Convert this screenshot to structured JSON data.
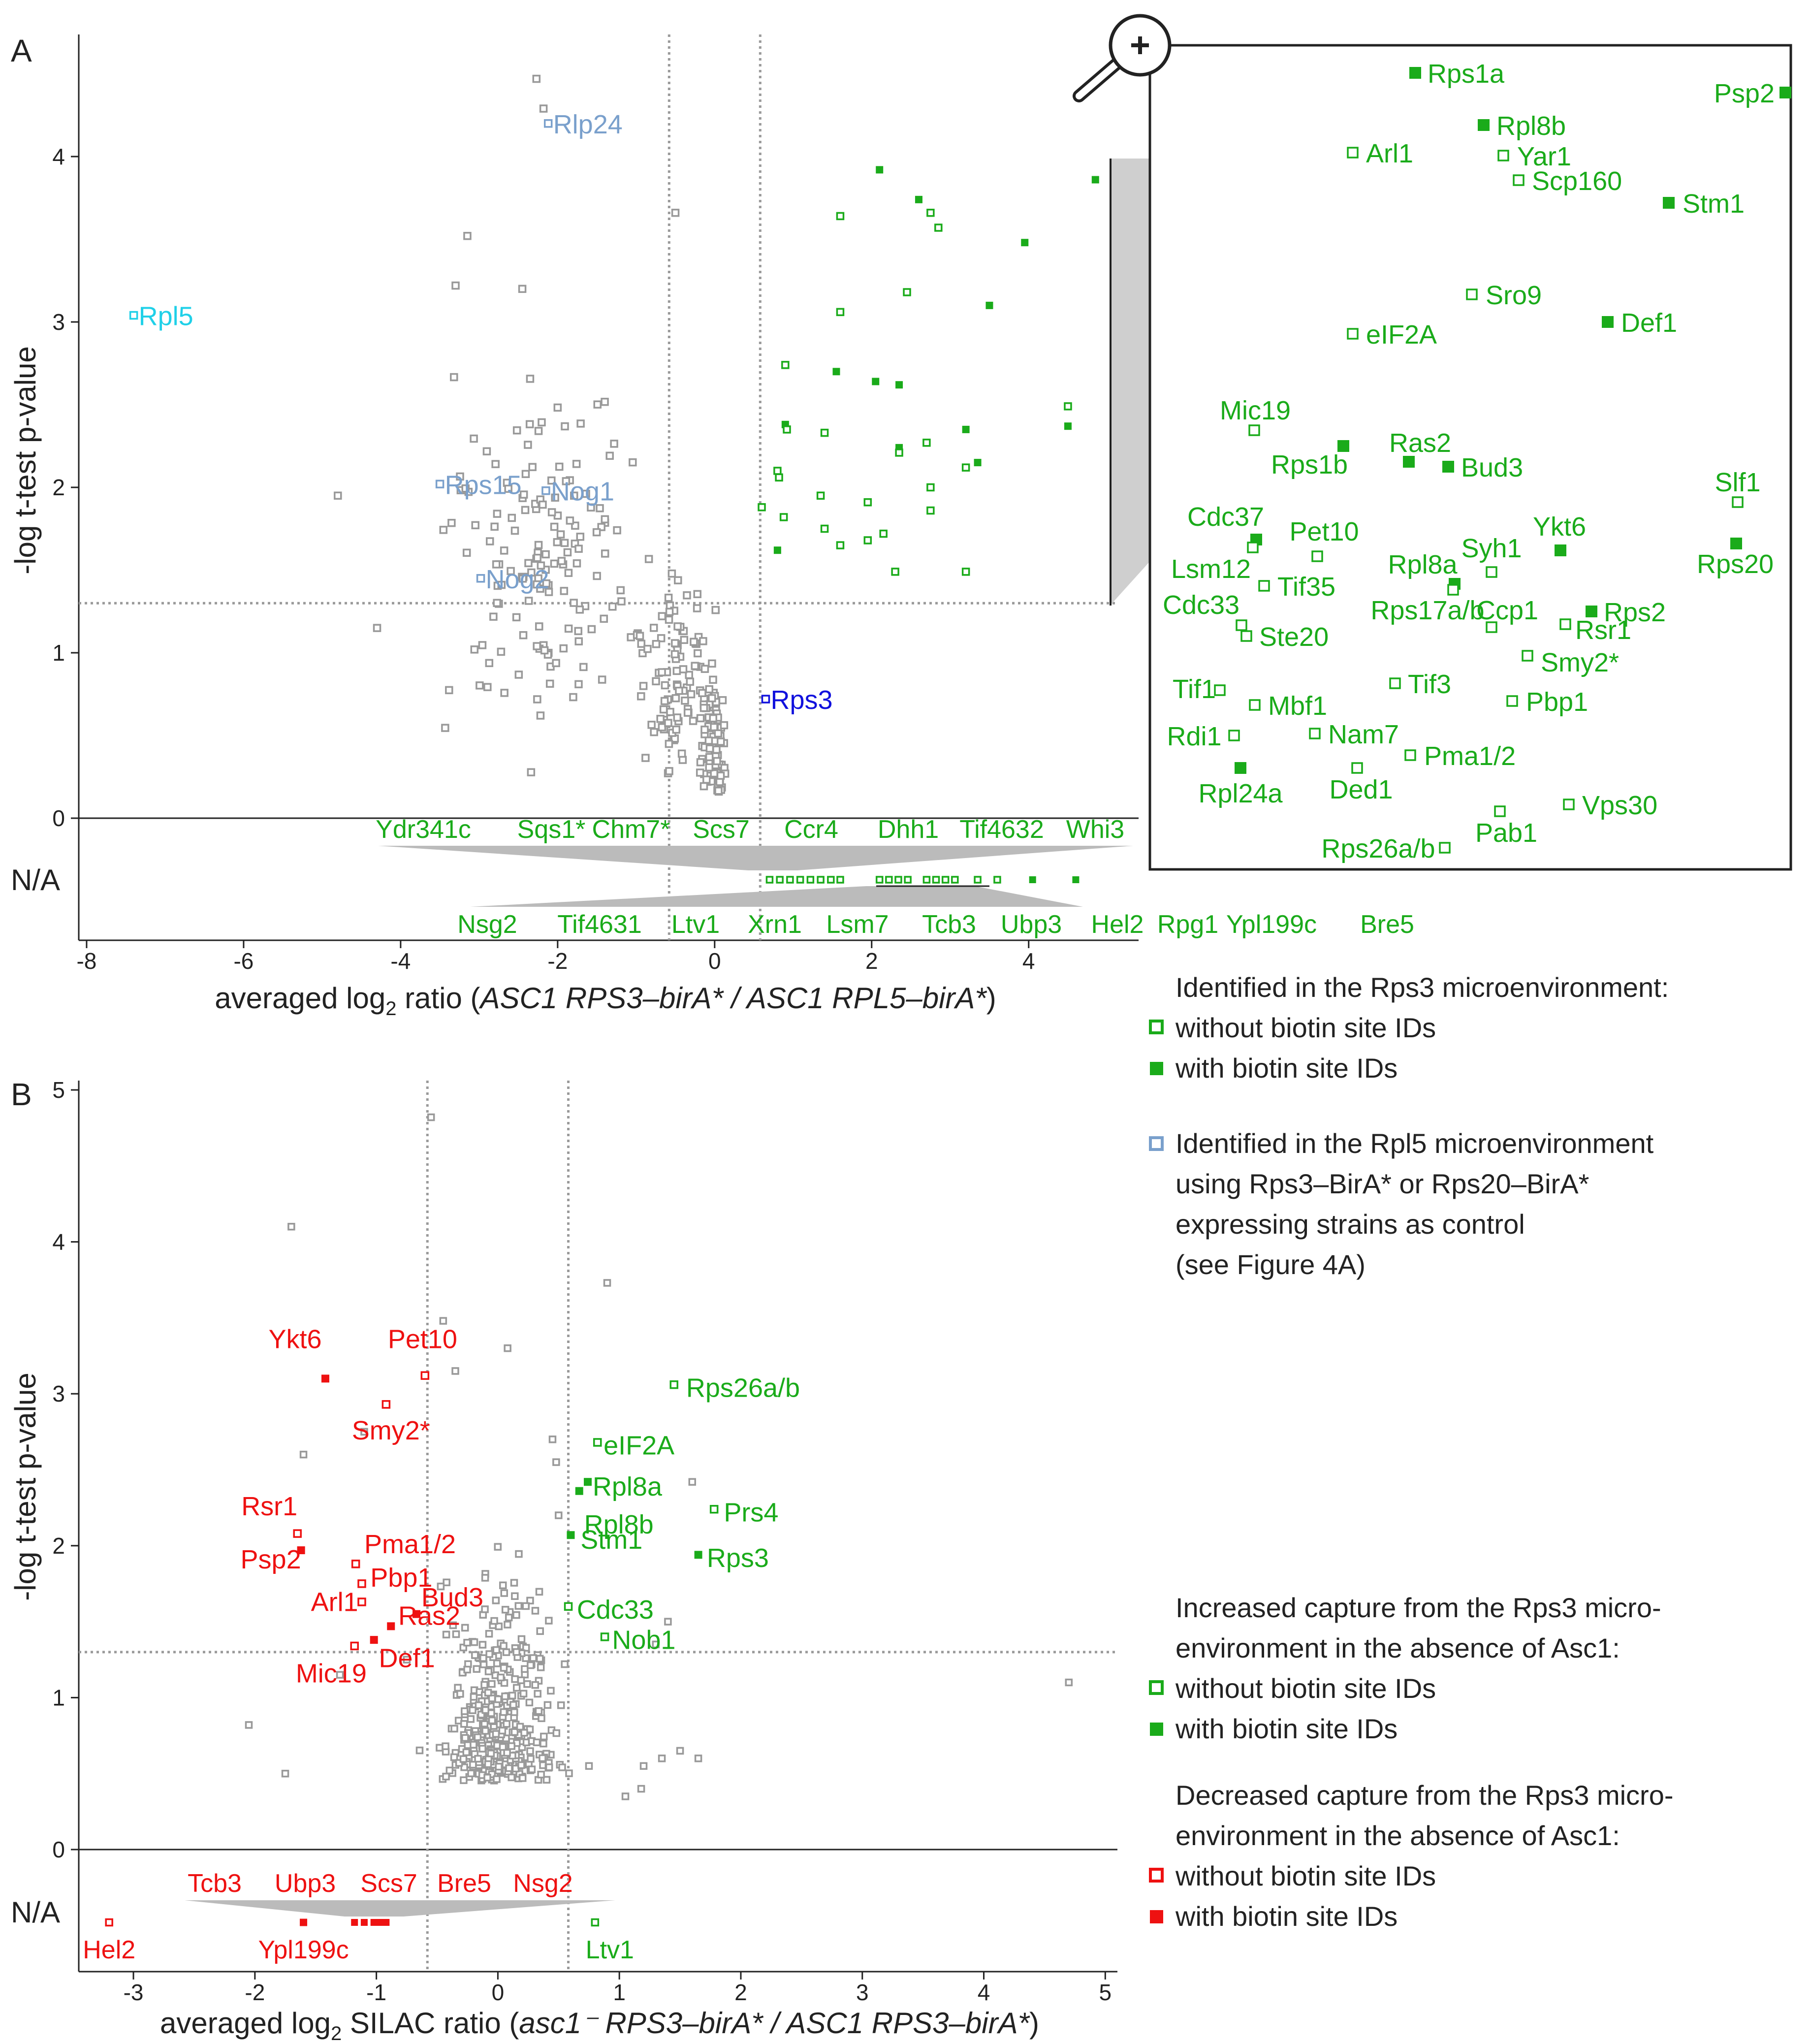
{
  "colors": {
    "green": "#1aab1a",
    "red": "#ee1111",
    "gray": "#999999",
    "steelblue": "#7aa0cc",
    "cyan": "#1fd0e8",
    "blue": "#1111dd",
    "axis": "#222222",
    "guide": "#9a9a9a",
    "wedge": "#bbbbbb"
  },
  "chart_data": [
    {
      "id": "A",
      "type": "scatter",
      "panel_letter": "A",
      "xlabel": "averaged log2 ratio (ASC1 RPS3–birA* / ASC1 RPL5–birA*)",
      "xlabel_parts": {
        "pre": "averaged log",
        "sub": "2",
        "mid": " ratio (",
        "italic": "ASC1 RPS3–birA* / ASC1 RPL5–birA*",
        "post": ")"
      },
      "ylabel": "-log t-test p-value",
      "xlim": [
        -8.1,
        5.4
      ],
      "ylim": [
        -0.75,
        4.75
      ],
      "xticks": [
        -8,
        -6,
        -4,
        -2,
        0,
        2,
        4
      ],
      "yticks": [
        0,
        1,
        2,
        3,
        4
      ],
      "na_label": "N/A",
      "thresholds": {
        "x": [
          -0.58,
          0.58
        ],
        "y": 1.3
      },
      "labeled_points": [
        {
          "label": "Rpl5",
          "x": -7.4,
          "y": 3.04,
          "color": "cyan"
        },
        {
          "label": "Rlp24",
          "x": -2.12,
          "y": 4.2,
          "color": "steelblue"
        },
        {
          "label": "Rps15",
          "x": -3.5,
          "y": 2.02,
          "color": "steelblue"
        },
        {
          "label": "Nog1",
          "x": -2.15,
          "y": 1.98,
          "color": "steelblue"
        },
        {
          "label": "Nog2",
          "x": -2.98,
          "y": 1.45,
          "color": "steelblue"
        },
        {
          "label": "Rps3",
          "x": 0.65,
          "y": 0.72,
          "color": "blue"
        }
      ],
      "green_points": [
        [
          2.1,
          3.92,
          1
        ],
        [
          2.6,
          3.74,
          1
        ],
        [
          2.75,
          3.66,
          0
        ],
        [
          2.85,
          3.57,
          0
        ],
        [
          1.6,
          3.64,
          0
        ],
        [
          3.95,
          3.48,
          1
        ],
        [
          4.85,
          3.86,
          1
        ],
        [
          2.45,
          3.18,
          0
        ],
        [
          3.5,
          3.1,
          1
        ],
        [
          1.6,
          3.06,
          0
        ],
        [
          0.9,
          2.74,
          0
        ],
        [
          1.55,
          2.7,
          1
        ],
        [
          2.05,
          2.64,
          1
        ],
        [
          2.35,
          2.62,
          1
        ],
        [
          4.5,
          2.49,
          0
        ],
        [
          4.5,
          2.37,
          1
        ],
        [
          0.9,
          2.38,
          1
        ],
        [
          0.92,
          2.35,
          0
        ],
        [
          1.4,
          2.33,
          0
        ],
        [
          3.2,
          2.35,
          1
        ],
        [
          2.35,
          2.24,
          1
        ],
        [
          2.35,
          2.21,
          0
        ],
        [
          2.7,
          2.27,
          0
        ],
        [
          0.8,
          2.1,
          0
        ],
        [
          0.82,
          2.06,
          0
        ],
        [
          1.35,
          1.95,
          0
        ],
        [
          2.75,
          2.0,
          0
        ],
        [
          3.35,
          2.15,
          1
        ],
        [
          3.2,
          2.12,
          0
        ],
        [
          0.6,
          1.88,
          0
        ],
        [
          1.95,
          1.91,
          0
        ],
        [
          2.75,
          1.86,
          0
        ],
        [
          0.88,
          1.82,
          0
        ],
        [
          1.4,
          1.75,
          0
        ],
        [
          1.6,
          1.65,
          0
        ],
        [
          2.15,
          1.72,
          0
        ],
        [
          0.8,
          1.62,
          1
        ],
        [
          1.95,
          1.68,
          0
        ],
        [
          2.3,
          1.49,
          0
        ],
        [
          3.2,
          1.49,
          0
        ]
      ],
      "na_row_top_labels": [
        "Ydr341c",
        "Sqs1*",
        "Chm7*",
        "Scs7",
        "Ccr4",
        "Dhh1",
        "Tif4632",
        "Whi3"
      ],
      "na_row_bottom_labels": [
        "Nsg2",
        "Tif4631",
        "Ltv1",
        "Xrn1",
        "Lsm7",
        "Tcb3",
        "Ubp3",
        "Hel2",
        "Rpg1",
        "Ypl199c",
        "Bre5"
      ],
      "na_points": [
        [
          0.7,
          0
        ],
        [
          0.83,
          0
        ],
        [
          0.96,
          0
        ],
        [
          1.09,
          0
        ],
        [
          1.22,
          0
        ],
        [
          1.35,
          0
        ],
        [
          1.48,
          0
        ],
        [
          1.6,
          0
        ],
        [
          2.1,
          0
        ],
        [
          2.22,
          0
        ],
        [
          2.34,
          0
        ],
        [
          2.46,
          0
        ],
        [
          2.7,
          0
        ],
        [
          2.82,
          0
        ],
        [
          2.94,
          0
        ],
        [
          3.06,
          0
        ],
        [
          3.35,
          0
        ],
        [
          3.6,
          0
        ],
        [
          4.05,
          1
        ],
        [
          4.6,
          1
        ]
      ],
      "zoom_points": [
        {
          "label": "Rps1a",
          "filled": true
        },
        {
          "label": "Psp2",
          "filled": true
        },
        {
          "label": "Rpl8b",
          "filled": true
        },
        {
          "label": "Arl1",
          "filled": false
        },
        {
          "label": "Yar1",
          "filled": false
        },
        {
          "label": "Scp160",
          "filled": false
        },
        {
          "label": "Stm1",
          "filled": true
        },
        {
          "label": "Sro9",
          "filled": false
        },
        {
          "label": "eIF2A",
          "filled": false
        },
        {
          "label": "Def1",
          "filled": true
        },
        {
          "label": "Mic19",
          "filled": false
        },
        {
          "label": "Ras2",
          "filled": true
        },
        {
          "label": "Rps1b",
          "filled": true
        },
        {
          "label": "Bud3",
          "filled": true
        },
        {
          "label": "Slf1",
          "filled": false
        },
        {
          "label": "Cdc37",
          "filled": true
        },
        {
          "label": "Pet10",
          "filled": false
        },
        {
          "label": "Ykt6",
          "filled": true
        },
        {
          "label": "Rps20",
          "filled": true
        },
        {
          "label": "Lsm12",
          "filled": false
        },
        {
          "label": "Tif35",
          "filled": false
        },
        {
          "label": "Syh1",
          "filled": false
        },
        {
          "label": "Rpl8a",
          "filled": true
        },
        {
          "label": "Cdc33",
          "filled": false
        },
        {
          "label": "Rps17a/b",
          "filled": false
        },
        {
          "label": "Ccp1",
          "filled": false
        },
        {
          "label": "Rps2",
          "filled": true
        },
        {
          "label": "Rsr1",
          "filled": false
        },
        {
          "label": "Ste20",
          "filled": false
        },
        {
          "label": "Smy2*",
          "filled": false
        },
        {
          "label": "Tif1",
          "filled": false
        },
        {
          "label": "Tif3",
          "filled": false
        },
        {
          "label": "Pbp1",
          "filled": false
        },
        {
          "label": "Mbf1",
          "filled": false
        },
        {
          "label": "Rdi1",
          "filled": false
        },
        {
          "label": "Nam7",
          "filled": false
        },
        {
          "label": "Pma1/2",
          "filled": false
        },
        {
          "label": "Rpl24a",
          "filled": true
        },
        {
          "label": "Ded1",
          "filled": false
        },
        {
          "label": "Pab1",
          "filled": false
        },
        {
          "label": "Vps30",
          "filled": false
        },
        {
          "label": "Rps26a/b",
          "filled": false
        }
      ]
    },
    {
      "id": "B",
      "type": "scatter",
      "panel_letter": "B",
      "xlabel": "averaged log2 SILAC ratio (asc1– RPS3–birA* / ASC1 RPS3–birA*)",
      "xlabel_parts": {
        "pre": "averaged log",
        "sub": "2",
        "mid": " SILAC ratio (",
        "italic": "asc1⁻ RPS3–birA* / ASC1 RPS3–birA*",
        "post": ")"
      },
      "ylabel": "-log t-test p-value",
      "xlim": [
        -3.45,
        5.1
      ],
      "ylim": [
        -0.75,
        5.1
      ],
      "xticks": [
        -3,
        -2,
        -1,
        0,
        1,
        2,
        3,
        4,
        5
      ],
      "yticks": [
        0,
        1,
        2,
        3,
        4,
        5
      ],
      "na_label": "N/A",
      "thresholds": {
        "x": [
          -0.58,
          0.58
        ],
        "y": 1.3
      },
      "red_points": [
        {
          "label": "Ykt6",
          "x": -1.42,
          "y": 3.1,
          "filled": true
        },
        {
          "label": "Pet10",
          "x": -0.6,
          "y": 3.12,
          "filled": false
        },
        {
          "label": "Smy2*",
          "x": -0.92,
          "y": 2.93,
          "filled": false
        },
        {
          "label": "Rsr1",
          "x": -1.65,
          "y": 2.08,
          "filled": false
        },
        {
          "label": "Psp2",
          "x": -1.62,
          "y": 1.97,
          "filled": true
        },
        {
          "label": "Pma1/2",
          "x": -1.17,
          "y": 1.88,
          "filled": false
        },
        {
          "label": "Pbp1",
          "x": -1.12,
          "y": 1.75,
          "filled": false
        },
        {
          "label": "Arl1",
          "x": -1.12,
          "y": 1.63,
          "filled": false
        },
        {
          "label": "Bud3",
          "x": -0.67,
          "y": 1.55,
          "filled": true
        },
        {
          "label": "Ras2",
          "x": -0.88,
          "y": 1.47,
          "filled": true
        },
        {
          "label": "Def1",
          "x": -1.02,
          "y": 1.38,
          "filled": true
        },
        {
          "label": "Mic19",
          "x": -1.18,
          "y": 1.34,
          "filled": false
        }
      ],
      "green_points": [
        {
          "label": "Rps26a/b",
          "x": 1.45,
          "y": 3.06,
          "filled": false
        },
        {
          "label": "eIF2A",
          "x": 0.82,
          "y": 2.68,
          "filled": false
        },
        {
          "label": "Rpl8a",
          "x": 0.74,
          "y": 2.42,
          "filled": true
        },
        {
          "label": "Rpl8b",
          "x": 0.67,
          "y": 2.36,
          "filled": true
        },
        {
          "label": "Prs4",
          "x": 1.78,
          "y": 2.24,
          "filled": false
        },
        {
          "label": "Stm1",
          "x": 0.6,
          "y": 2.07,
          "filled": true
        },
        {
          "label": "Rps3",
          "x": 1.65,
          "y": 1.94,
          "filled": true
        },
        {
          "label": "Cdc33",
          "x": 0.58,
          "y": 1.6,
          "filled": false
        },
        {
          "label": "Nob1",
          "x": 0.88,
          "y": 1.4,
          "filled": false
        }
      ],
      "na_row_labels": [
        "Tcb3",
        "Ubp3",
        "Scs7",
        "Bre5",
        "Nsg2"
      ],
      "na_points": [
        {
          "label": "Hel2",
          "x": -3.2,
          "color": "red",
          "filled": false
        },
        {
          "label": "Ypl199c",
          "x": -1.6,
          "color": "red",
          "filled": true
        },
        {
          "label": "Ltv1",
          "x": 0.8,
          "color": "green",
          "filled": false
        }
      ],
      "na_cluster": [
        -1.18,
        -1.1,
        -1.02,
        -0.97,
        -0.92
      ]
    }
  ],
  "legendA": {
    "heading": "Identified in the Rps3 microenvironment:",
    "item_open": "without biotin site IDs",
    "item_filled": "with biotin site IDs",
    "rpl5_lines": [
      "Identified in the Rpl5 microenvironment",
      "using Rps3–BirA* or Rps20–BirA*",
      "expressing strains as control",
      "(see Figure 4A)"
    ]
  },
  "legendB": {
    "increased_lines": [
      "Increased capture from the Rps3 micro-",
      "environment in the absence of Asc1:"
    ],
    "increased_open": "without biotin site IDs",
    "increased_filled": "with biotin site IDs",
    "decreased_lines": [
      "Decreased capture from the Rps3 micro-",
      "environment in the absence of Asc1:"
    ],
    "decreased_open": "without biotin site IDs",
    "decreased_filled": "with biotin site IDs"
  },
  "zoom_icon": "magnifier-plus-icon"
}
